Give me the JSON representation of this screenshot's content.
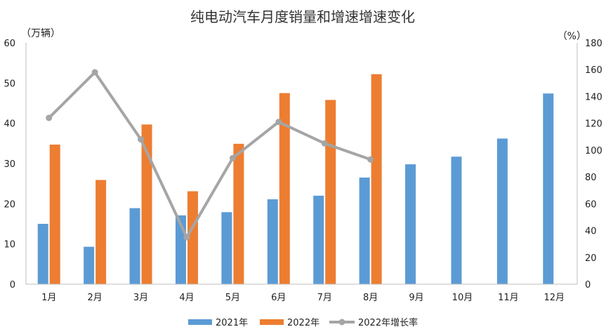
{
  "chart_data": {
    "type": "bar",
    "title": "纯电动汽车月度销量和增速增速变化",
    "y_left_unit": "（万辆）",
    "y_right_unit": "（%）",
    "categories": [
      "1月",
      "2月",
      "3月",
      "4月",
      "5月",
      "6月",
      "7月",
      "8月",
      "9月",
      "10月",
      "11月",
      "12月"
    ],
    "ylim_left": [
      0,
      60
    ],
    "ylim_right": [
      0,
      180
    ],
    "left_ticks": [
      "0",
      "10",
      "20",
      "30",
      "40",
      "50",
      "60"
    ],
    "right_ticks": [
      "0",
      "20",
      "40",
      "60",
      "80",
      "100",
      "120",
      "140",
      "160",
      "180"
    ],
    "series": [
      {
        "name": "2021年",
        "type": "bar",
        "axis": "left",
        "color": "#5B9BD5",
        "values": [
          15.0,
          9.3,
          18.9,
          17.1,
          17.9,
          21.1,
          22.0,
          26.5,
          29.8,
          31.7,
          36.2,
          47.4
        ]
      },
      {
        "name": "2022年",
        "type": "bar",
        "axis": "left",
        "color": "#ED7D31",
        "values": [
          34.7,
          25.9,
          39.7,
          23.1,
          34.9,
          47.5,
          45.8,
          52.2,
          null,
          null,
          null,
          null
        ]
      },
      {
        "name": "2022年增长率",
        "type": "line",
        "axis": "right",
        "color": "#A5A5A5",
        "values": [
          124,
          158,
          108,
          35,
          94,
          121,
          105,
          93,
          null,
          null,
          null,
          null
        ]
      }
    ],
    "legend_position": "bottom"
  }
}
